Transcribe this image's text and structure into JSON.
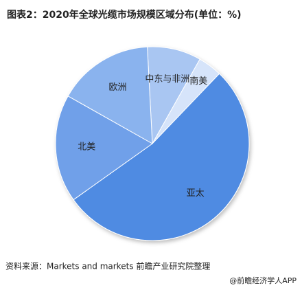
{
  "chart_data": {
    "type": "pie",
    "title": "图表2：2020年全球光缆市场规模区域分布(单位：%)",
    "categories": [
      "中东与非洲",
      "南美",
      "亚太",
      "北美",
      "欧洲"
    ],
    "values": [
      9,
      4,
      53,
      18,
      16
    ],
    "colors": [
      "#a9c6f2",
      "#d6e4fa",
      "#4f8be2",
      "#6fa0e9",
      "#8ab3ee"
    ],
    "source": "资料来源：Markets and markets 前瞻产业研究院整理",
    "footer": "@前瞻经济学人APP"
  }
}
